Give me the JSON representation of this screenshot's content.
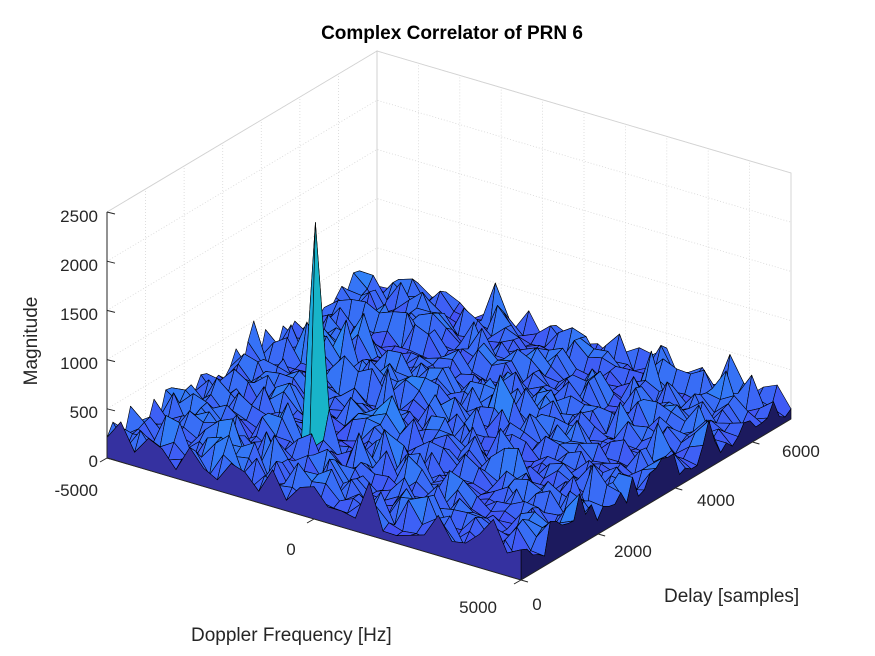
{
  "chart_data": {
    "type": "surface",
    "title": "Complex Correlator of PRN 6",
    "xlabel": "Delay [samples]",
    "ylabel": "Doppler Frequency [Hz]",
    "zlabel": "Magnitude",
    "xlim": [
      0,
      7000
    ],
    "ylim": [
      -5000,
      5000
    ],
    "zlim": [
      0,
      2500
    ],
    "xticks": [
      "0",
      "2000",
      "4000",
      "6000"
    ],
    "yticks": [
      "-5000",
      "0",
      "5000"
    ],
    "zticks": [
      "0",
      "500",
      "1000",
      "1500",
      "2000",
      "2500"
    ],
    "colormap": [
      "#3e26a8",
      "#4352f5",
      "#2e87f7",
      "#1caadf",
      "#14bdb5",
      "#5bc967",
      "#c3be3b",
      "#fdb22f",
      "#f9fb15"
    ],
    "noise_floor": 350,
    "peak": {
      "delay": 1800,
      "doppler": -1800,
      "magnitude": 2380
    },
    "grid": true
  }
}
